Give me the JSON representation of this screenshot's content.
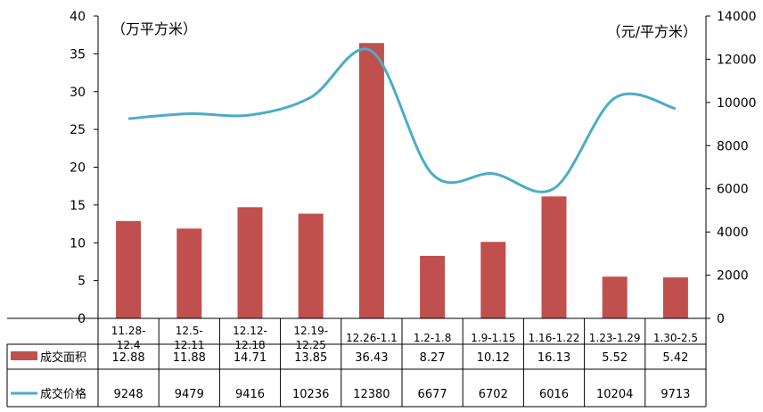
{
  "chart_data": {
    "type": "bar",
    "categories": [
      [
        "11.28-",
        "12.4"
      ],
      [
        "12.5-",
        "12.11"
      ],
      [
        "12.12-",
        "12.18"
      ],
      [
        "12.19-",
        "12.25"
      ],
      [
        "12.26-1.1"
      ],
      [
        "1.2-1.8"
      ],
      [
        "1.9-1.15"
      ],
      [
        "1.16-1.22"
      ],
      [
        "1.23-1.29"
      ],
      [
        "1.30-2.5"
      ]
    ],
    "left_axis": {
      "unit": "（万平方米）",
      "min": 0,
      "max": 40,
      "ticks": [
        0,
        5,
        10,
        15,
        20,
        25,
        30,
        35,
        40
      ]
    },
    "right_axis": {
      "unit": "（元/平方米）",
      "min": 0,
      "max": 14000,
      "ticks": [
        0,
        2000,
        4000,
        6000,
        8000,
        10000,
        12000,
        14000
      ]
    },
    "series": [
      {
        "name": "成交面积",
        "type": "bar",
        "axis": "left",
        "color": "#c0504d",
        "values": [
          12.88,
          11.88,
          14.71,
          13.85,
          36.43,
          8.27,
          10.12,
          16.13,
          5.52,
          5.42
        ],
        "labels": [
          "12.88",
          "11.88",
          "14.71",
          "13.85",
          "36.43",
          "8.27",
          "10.12",
          "16.13",
          "5.52",
          "5.42"
        ]
      },
      {
        "name": "成交价格",
        "type": "line",
        "axis": "right",
        "color": "#4bacc6",
        "values": [
          9248,
          9479,
          9416,
          10236,
          12380,
          6677,
          6702,
          6016,
          10204,
          9713
        ],
        "labels": [
          "9248",
          "9479",
          "9416",
          "10236",
          "12380",
          "6677",
          "6702",
          "6016",
          "10204",
          "9713"
        ]
      }
    ],
    "data_table": true,
    "grid": false
  }
}
